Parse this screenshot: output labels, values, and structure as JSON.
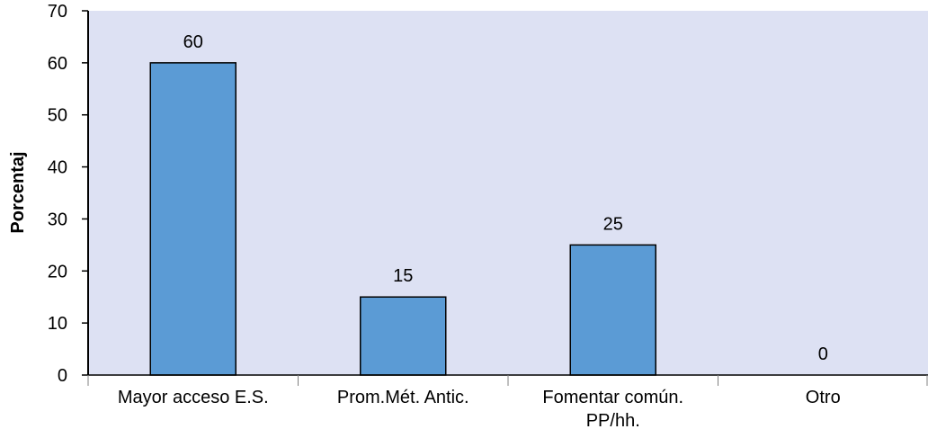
{
  "chart_data": {
    "type": "bar",
    "title": "",
    "xlabel": "",
    "ylabel": "Porcentaj",
    "categories": [
      [
        "Mayor acceso E.S."
      ],
      [
        "Prom.Mét. Antic."
      ],
      [
        "Fomentar común.",
        "PP/hh."
      ],
      [
        "Otro"
      ]
    ],
    "values": [
      60,
      15,
      25,
      0
    ],
    "value_labels": [
      "60",
      "15",
      "25",
      "0"
    ],
    "ylim": [
      0,
      70
    ],
    "yticks": [
      0,
      10,
      20,
      30,
      40,
      50,
      60,
      70
    ],
    "ytick_labels": [
      "0",
      "10",
      "20",
      "30",
      "40",
      "50",
      "60",
      "70"
    ],
    "grid": false,
    "legend": "none",
    "colors": {
      "plot_background": "#dde1f3",
      "bar_fill": "#5b9bd5",
      "bar_stroke": "#000000",
      "axis": "#000000",
      "tick_mark": "#808080"
    }
  }
}
